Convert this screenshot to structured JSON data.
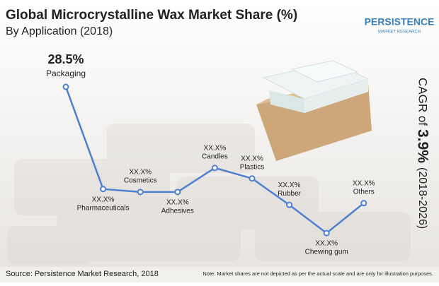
{
  "chart_data": {
    "type": "line",
    "title": "Global Microcrystalline Wax Market Share (%)",
    "subtitle": "By Application (2018)",
    "categories": [
      "Packaging",
      "Pharmaceuticals",
      "Cosmetics",
      "Adhesives",
      "Candles",
      "Plastics",
      "Rubber",
      "Chewing gum",
      "Others"
    ],
    "values": [
      28.5,
      11.1,
      10.6,
      10.6,
      14.7,
      12.9,
      8.4,
      3.6,
      8.7
    ],
    "value_labels": [
      "28.5%",
      "XX.X%",
      "XX.X%",
      "XX.X%",
      "XX.X%",
      "XX.X%",
      "XX.X%",
      "XX.X%",
      "XX.X%"
    ],
    "color": "#4f7fd0",
    "ylim": [
      0,
      30
    ],
    "cagr": {
      "prefix": "CAGR of",
      "value": "3.9%",
      "period": "(2018-2026)"
    },
    "logo": {
      "name": "PERSISTENCE",
      "tagline": "MARKET RESEARCH"
    },
    "source": "Source: Persistence Market Research, 2018",
    "note": "Note: Market shares are not depicted as per the actual scale and are only for illustration purposes."
  }
}
